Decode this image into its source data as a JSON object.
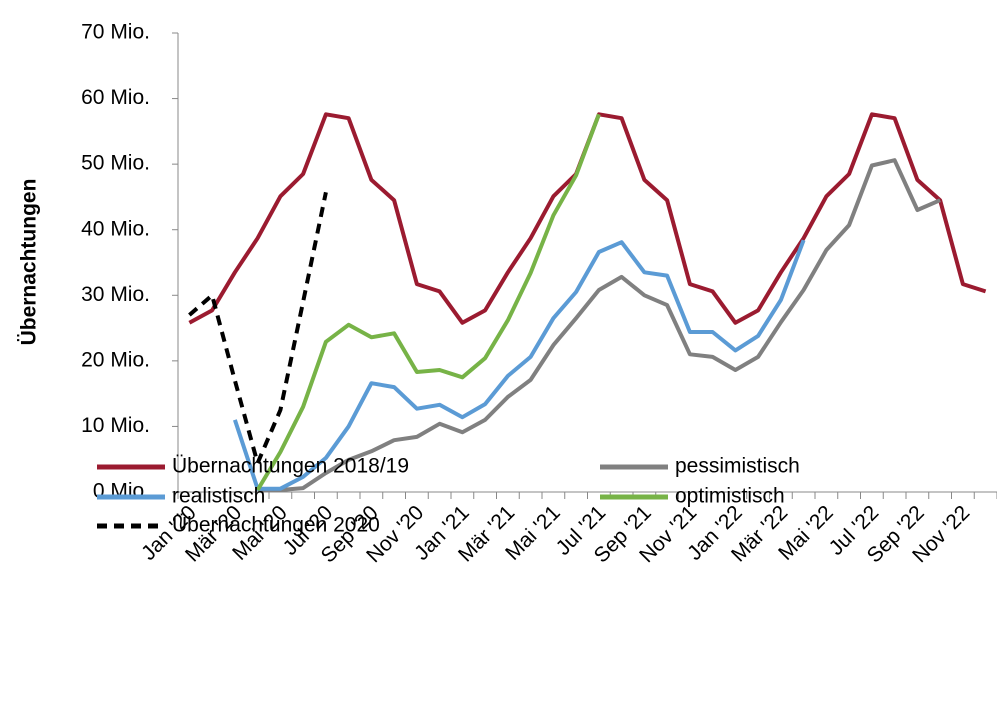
{
  "chart_data": {
    "type": "line",
    "y_label": "Übernachtungen",
    "categories": [
      "Jan '20",
      null,
      "Mär '20",
      null,
      "Mai '20",
      null,
      "Jul '20",
      null,
      "Sep '20",
      null,
      "Nov '20",
      null,
      "Jan '21",
      null,
      "Mär '21",
      null,
      "Mai '21",
      null,
      "Jul '21",
      null,
      "Sep '21",
      null,
      "Nov '21",
      null,
      "Jan '22",
      null,
      "Mär '22",
      null,
      "Mai '22",
      null,
      "Jul '22",
      null,
      "Sep '22",
      null,
      "Nov '22",
      null
    ],
    "ylim": [
      0,
      70
    ],
    "yticks": [
      {
        "value": 0,
        "label": "0 Mio."
      },
      {
        "value": 10,
        "label": "10 Mio."
      },
      {
        "value": 20,
        "label": "20 Mio."
      },
      {
        "value": 30,
        "label": "30 Mio."
      },
      {
        "value": 40,
        "label": "40 Mio."
      },
      {
        "value": 50,
        "label": "50 Mio."
      },
      {
        "value": 60,
        "label": "60 Mio."
      },
      {
        "value": 70,
        "label": "70 Mio."
      }
    ],
    "series": [
      {
        "name": "Übernachtungen 2018/19",
        "color": "#9b1b30",
        "dashed": false,
        "values": [
          25.8,
          27.7,
          33.5,
          38.7,
          45.1,
          48.5,
          57.6,
          57,
          47.6,
          44.5,
          31.7,
          30.6,
          25.8,
          27.7,
          33.5,
          38.7,
          45.1,
          48.5,
          57.6,
          57,
          47.6,
          44.5,
          31.7,
          30.6,
          25.8,
          27.7,
          33.5,
          38.7,
          45.1,
          48.5,
          57.6,
          57,
          47.6,
          44.5,
          31.7,
          30.6
        ]
      },
      {
        "name": "pessimistisch",
        "color": "#808080",
        "dashed": false,
        "values": [
          null,
          null,
          null,
          0.3,
          0.3,
          0.6,
          2.9,
          4.9,
          6.2,
          7.9,
          8.4,
          10.4,
          9.1,
          11,
          14.5,
          17.1,
          22.4,
          26.5,
          30.8,
          32.8,
          30,
          28.5,
          21,
          20.6,
          18.6,
          20.6,
          25.9,
          30.8,
          36.9,
          40.7,
          49.8,
          50.6,
          43,
          44.5,
          null,
          null
        ]
      },
      {
        "name": "realistisch",
        "color": "#5b9bd5",
        "dashed": false,
        "values": [
          null,
          null,
          11,
          0.5,
          0.5,
          2.3,
          5.2,
          10,
          16.6,
          16,
          12.7,
          13.3,
          11.4,
          13.4,
          17.7,
          20.6,
          26.5,
          30.5,
          36.6,
          38.1,
          33.5,
          33,
          24.4,
          24.4,
          21.6,
          23.8,
          29.3,
          38.4,
          null,
          null,
          null,
          null,
          null,
          null,
          null,
          null
        ]
      },
      {
        "name": "optimistisch",
        "color": "#77b347",
        "dashed": false,
        "values": [
          null,
          null,
          null,
          0.3,
          6.1,
          13,
          22.9,
          25.5,
          23.6,
          24.2,
          18.3,
          18.6,
          17.5,
          20.4,
          26.2,
          33.4,
          42.2,
          48.3,
          57.6,
          null,
          null,
          null,
          null,
          null,
          null,
          null,
          null,
          null,
          null,
          null,
          null,
          null,
          null,
          null,
          null,
          null
        ]
      },
      {
        "name": "Übernachtungen 2020",
        "color": "#000000",
        "dashed": true,
        "values": [
          27,
          30,
          17,
          4.4,
          12.5,
          29,
          45.7,
          null,
          null,
          null,
          null,
          null,
          null,
          null,
          null,
          null,
          null,
          null,
          null,
          null,
          null,
          null,
          null,
          null,
          null,
          null,
          null,
          null,
          null,
          null,
          null,
          null,
          null,
          null,
          null,
          null
        ]
      }
    ]
  }
}
